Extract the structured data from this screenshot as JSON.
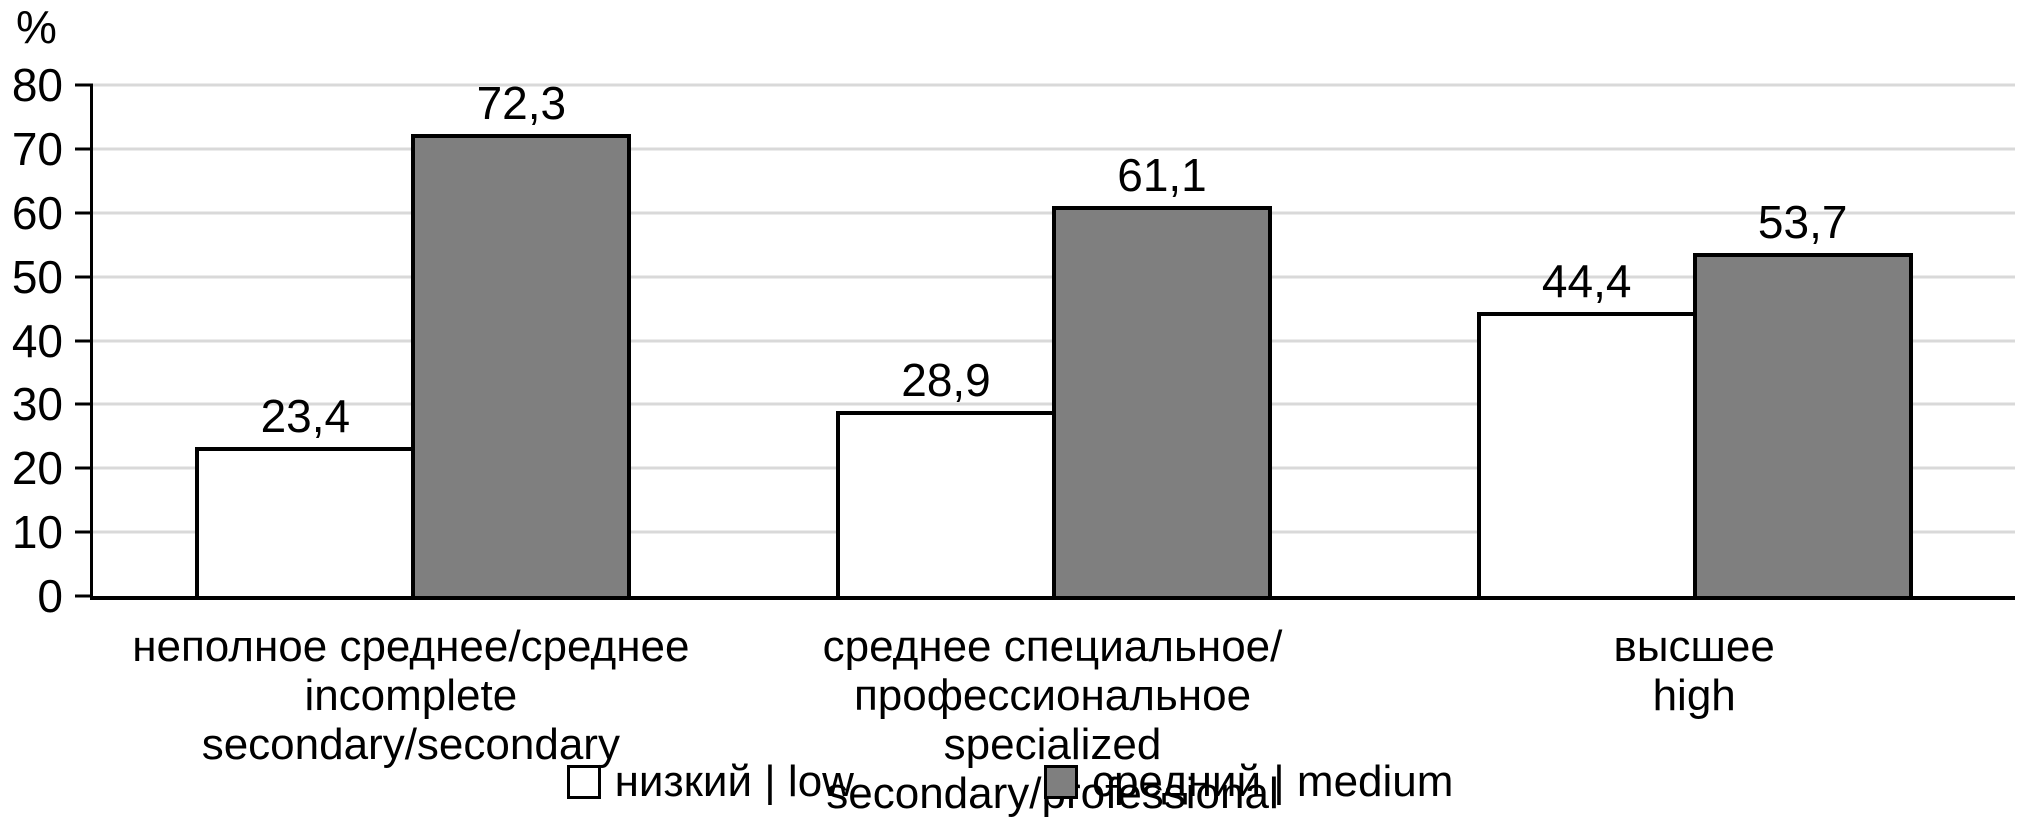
{
  "chart_data": {
    "type": "bar",
    "title": "",
    "ylabel": "%",
    "xlabel": "",
    "ylim": [
      0,
      80
    ],
    "yticks": [
      0,
      10,
      20,
      30,
      40,
      50,
      60,
      70,
      80
    ],
    "grid": true,
    "legend_position": "bottom",
    "decimal_separator": ",",
    "categories": [
      {
        "label_ru": "неполное среднее/среднее",
        "label_en": "incomplete secondary/secondary"
      },
      {
        "label_ru": "среднее специальное/профессиональное",
        "label_en": "specialized secondary/professional"
      },
      {
        "label_ru": "высшее",
        "label_en": "high"
      }
    ],
    "series": [
      {
        "key": "low",
        "name": "низкий | low",
        "fill": "#ffffff",
        "values": [
          23.4,
          28.9,
          44.4
        ],
        "value_labels": [
          "23,4",
          "28,9",
          "44,4"
        ]
      },
      {
        "key": "medium",
        "name": "средний | medium",
        "fill": "#7f7f7f",
        "values": [
          72.3,
          61.1,
          53.7
        ],
        "value_labels": [
          "72,3",
          "61,1",
          "53,7"
        ]
      }
    ],
    "colors": {
      "bar_border": "#000000",
      "gridline": "#d9d9d9",
      "axis": "#000000",
      "text": "#000000",
      "background": "#ffffff"
    }
  }
}
